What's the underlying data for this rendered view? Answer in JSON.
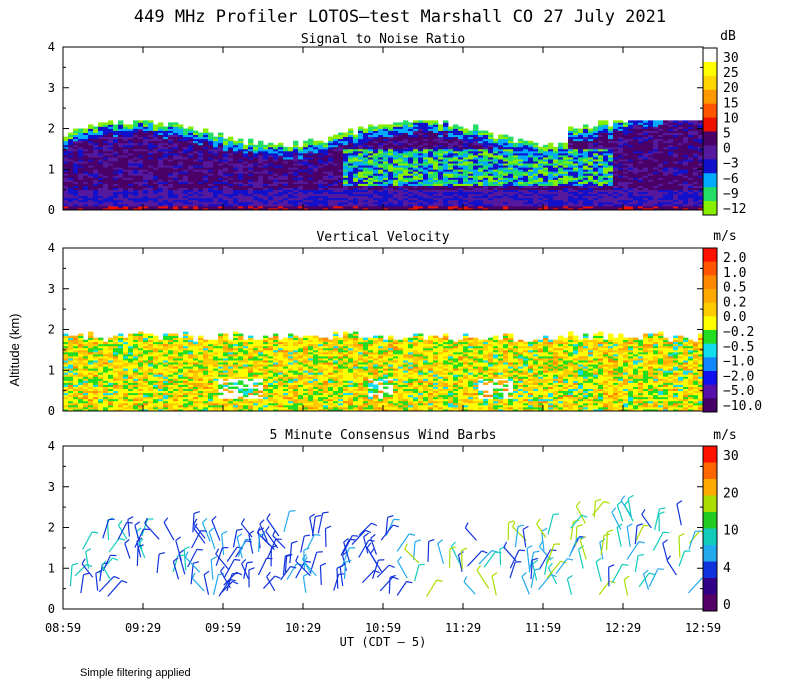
{
  "title": "449 MHz Profiler LOTOS–test Marshall CO 27 July 2021",
  "ylabel": "Altitude (km)",
  "xlabel": "UT  (CDT – 5)",
  "footnote": "Simple filtering applied",
  "xticks": [
    "08:59",
    "09:29",
    "09:59",
    "10:29",
    "10:59",
    "11:29",
    "11:59",
    "12:29",
    "12:59"
  ],
  "chart_data": [
    {
      "type": "heatmap",
      "title": "Signal to Noise Ratio",
      "ylabel": "Altitude (km)",
      "ylim": [
        0,
        4
      ],
      "yticks": [
        "0",
        "1",
        "2",
        "3",
        "4"
      ],
      "x_range": [
        "08:59",
        "12:59"
      ],
      "colorbar_units": "dB",
      "colorbar_labels": [
        "30",
        "25",
        "20",
        "15",
        "10",
        "5",
        "0",
        "−3",
        "−6",
        "−9",
        "−12"
      ],
      "colorbar_colors": [
        "#ffffff",
        "#ffff00",
        "#ffd700",
        "#ff9900",
        "#ff5500",
        "#ee1100",
        "#4a0066",
        "#55199e",
        "#1111cc",
        "#00aaff",
        "#22dd66",
        "#88ee00"
      ],
      "data_top_km_approx": 2.2
    },
    {
      "type": "heatmap",
      "title": "Vertical Velocity",
      "ylabel": "Altitude (km)",
      "ylim": [
        0,
        4
      ],
      "yticks": [
        "0",
        "1",
        "2",
        "3",
        "4"
      ],
      "x_range": [
        "08:59",
        "12:59"
      ],
      "colorbar_units": "m/s",
      "colorbar_labels": [
        "2.0",
        "1.0",
        "0.5",
        "0.2",
        "0.0",
        "−0.2",
        "−0.5",
        "−1.0",
        "−2.0",
        "−5.0",
        "−10.0"
      ],
      "colorbar_colors": [
        "#ff1100",
        "#ff5500",
        "#ff8800",
        "#ffaa00",
        "#ffcc00",
        "#ffff00",
        "#22dd22",
        "#11ddee",
        "#1188ff",
        "#1111ee",
        "#5511aa",
        "#440066"
      ],
      "data_top_km_approx": 2.0
    },
    {
      "type": "scatter",
      "subtype": "wind_barbs",
      "title": "5 Minute Consensus Wind Barbs",
      "ylabel": "Altitude (km)",
      "ylim": [
        0,
        4
      ],
      "yticks": [
        "0",
        "1",
        "2",
        "3",
        "4"
      ],
      "x_range": [
        "08:59",
        "12:59"
      ],
      "colorbar_units": "m/s",
      "colorbar_labels": [
        "30",
        "20",
        "10",
        "4",
        "0"
      ],
      "colorbar_colors": [
        "#ff1100",
        "#ff6600",
        "#ffaa00",
        "#aadd00",
        "#22cc22",
        "#11ccbb",
        "#22aaee",
        "#1133dd",
        "#330088",
        "#550066"
      ],
      "barb_altitude_range_km": [
        0.3,
        2.4
      ]
    }
  ]
}
